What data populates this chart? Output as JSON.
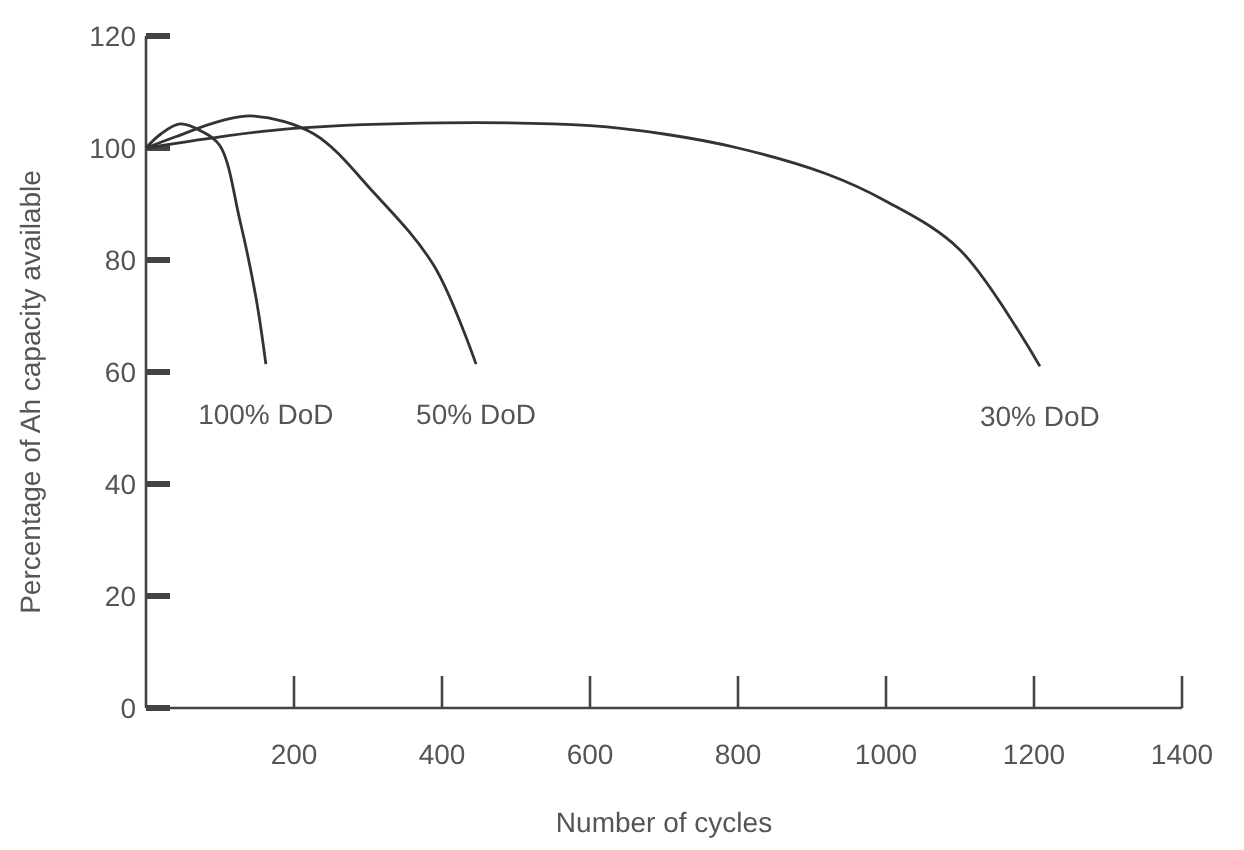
{
  "chart_data": {
    "type": "line",
    "xlabel": "Number of cycles",
    "ylabel": "Percentage of Ah capacity available",
    "xlim": [
      0,
      1400
    ],
    "xticks": [
      200,
      400,
      600,
      800,
      1000,
      1200,
      1400
    ],
    "ylim": [
      0,
      120
    ],
    "yticks": [
      0,
      20,
      40,
      60,
      80,
      100,
      120
    ],
    "marker": "none",
    "line_style": "solid",
    "series": [
      {
        "name": "100% DoD",
        "color": "#333333",
        "x": [
          0,
          20,
          46,
          75,
          100,
          127,
          149,
          162
        ],
        "values": [
          100,
          102.5,
          104.3,
          103,
          100.4,
          87,
          73,
          61.4
        ]
      },
      {
        "name": "50% DoD",
        "color": "#333333",
        "x": [
          0,
          40,
          100,
          146,
          227,
          308,
          389,
          446
        ],
        "values": [
          100,
          102,
          104.8,
          105.7,
          102.5,
          92,
          79,
          61.4
        ]
      },
      {
        "name": "30% DoD",
        "color": "#333333",
        "x": [
          0,
          100,
          200,
          400,
          600,
          700,
          800,
          919,
          1000,
          1100,
          1208
        ],
        "values": [
          100,
          102,
          103.5,
          104.5,
          104,
          102.5,
          100,
          95.4,
          90.5,
          81.8,
          61
        ]
      }
    ]
  }
}
